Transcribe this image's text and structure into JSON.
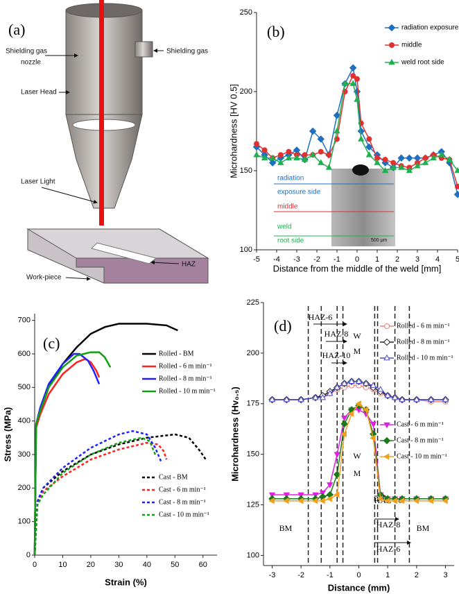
{
  "diagram": {
    "title": "(a)",
    "labels": [
      "Shielding gas",
      "nozzle",
      "Shielding gas",
      "Laser Head",
      "Laser Light",
      "HAZ",
      "Work-piece"
    ]
  },
  "chart_data": [
    {
      "type": "line",
      "title": "(b)",
      "x_label": "Distance from the middle of the weld [mm]",
      "y_label": "Microhardness [HV 0.5]",
      "x": [
        -5,
        -4.6,
        -4.2,
        -3.8,
        -3.4,
        -3,
        -2.6,
        -2.2,
        -1.8,
        -1.4,
        -1,
        -0.6,
        -0.2,
        0,
        0.2,
        0.6,
        1,
        1.4,
        1.8,
        2.2,
        2.6,
        3,
        3.4,
        3.8,
        4.2,
        4.6,
        5
      ],
      "xlim": [
        -5,
        5
      ],
      "xticks": [
        -5,
        -4,
        -3,
        -2,
        -1,
        0,
        1,
        2,
        3,
        4,
        5
      ],
      "ylim": [
        100,
        250
      ],
      "yticks": [
        100,
        150,
        200,
        250
      ],
      "series": [
        {
          "name": "radiation exposure side",
          "color": "#1f6fc0",
          "marker": "diamond",
          "values": [
            165,
            160,
            155,
            158,
            160,
            163,
            157,
            175,
            170,
            160,
            185,
            205,
            215,
            200,
            175,
            165,
            160,
            155,
            152,
            158,
            158,
            158,
            158,
            160,
            162,
            155,
            135
          ]
        },
        {
          "name": "middle",
          "color": "#e03030",
          "marker": "circle",
          "values": [
            167,
            163,
            158,
            160,
            162,
            160,
            160,
            160,
            162,
            160,
            170,
            200,
            210,
            208,
            180,
            170,
            158,
            157,
            155,
            153,
            152,
            155,
            158,
            160,
            158,
            157,
            140
          ]
        },
        {
          "name": "weld root side",
          "color": "#20b050",
          "marker": "triangle",
          "values": [
            160,
            158,
            158,
            155,
            158,
            158,
            157,
            160,
            155,
            152,
            175,
            205,
            205,
            195,
            170,
            160,
            155,
            150,
            152,
            152,
            150,
            153,
            155,
            158,
            160,
            157,
            150
          ]
        }
      ],
      "inset_labels": [
        "radiation",
        "exposure side",
        "middle",
        "weld",
        "root side",
        "500 μm"
      ]
    },
    {
      "type": "line",
      "title": "(c)",
      "x_label": "Strain (%)",
      "y_label": "Stress (MPa)",
      "xlim": [
        0,
        65
      ],
      "xticks": [
        0,
        10,
        20,
        30,
        40,
        50,
        60
      ],
      "ylim": [
        0,
        720
      ],
      "yticks": [
        0,
        100,
        200,
        300,
        400,
        500,
        600,
        700
      ],
      "series": [
        {
          "name": "Rolled - BM",
          "color": "#000000",
          "x": [
            0,
            0.5,
            2,
            5,
            10,
            15,
            20,
            25,
            30,
            40,
            47,
            51
          ],
          "values": [
            0,
            380,
            430,
            500,
            570,
            620,
            660,
            680,
            690,
            690,
            685,
            670
          ]
        },
        {
          "name": "Rolled - 6 m min⁻¹",
          "color": "#ff2020",
          "x": [
            0,
            0.5,
            2,
            5,
            10,
            15,
            18,
            20,
            22,
            23
          ],
          "values": [
            0,
            380,
            420,
            480,
            540,
            575,
            585,
            575,
            550,
            530
          ]
        },
        {
          "name": "Rolled - 8 m min⁻¹",
          "color": "#2020ff",
          "x": [
            0,
            0.5,
            2,
            5,
            10,
            14,
            16,
            19,
            21,
            23
          ],
          "values": [
            0,
            390,
            440,
            510,
            570,
            600,
            600,
            580,
            550,
            510
          ]
        },
        {
          "name": "Rolled - 10 m min⁻¹",
          "color": "#10a010",
          "x": [
            0,
            0.5,
            2,
            5,
            10,
            15,
            20,
            23,
            25,
            27
          ],
          "values": [
            0,
            390,
            430,
            500,
            560,
            595,
            605,
            605,
            590,
            560
          ]
        },
        {
          "name": "Cast - BM",
          "color": "#000000",
          "dash": true,
          "x": [
            0,
            1,
            3,
            10,
            20,
            30,
            40,
            50,
            55,
            59,
            61
          ],
          "values": [
            0,
            160,
            200,
            250,
            300,
            330,
            350,
            360,
            350,
            310,
            285
          ]
        },
        {
          "name": "Cast - 6 m min⁻¹",
          "color": "#ff2020",
          "dash": true,
          "x": [
            0,
            1,
            3,
            10,
            20,
            30,
            40,
            44,
            46,
            47
          ],
          "values": [
            0,
            155,
            190,
            235,
            285,
            315,
            335,
            330,
            310,
            285
          ]
        },
        {
          "name": "Cast - 8 m min⁻¹",
          "color": "#2020ff",
          "dash": true,
          "x": [
            0,
            1,
            3,
            10,
            20,
            30,
            35,
            40,
            43,
            45
          ],
          "values": [
            0,
            160,
            200,
            260,
            320,
            360,
            370,
            360,
            320,
            280
          ]
        },
        {
          "name": "Cast - 10 m min⁻¹",
          "color": "#10a010",
          "dash": true,
          "x": [
            0,
            1,
            3,
            10,
            20,
            30,
            38,
            41,
            43
          ],
          "values": [
            0,
            150,
            180,
            245,
            300,
            335,
            350,
            340,
            300
          ]
        }
      ]
    },
    {
      "type": "line",
      "title": "(d)",
      "x_label": "Distance (mm)",
      "y_label": "Microhardness (Hv₀.₅)",
      "x": [
        -3,
        -2.5,
        -2,
        -1.5,
        -1.25,
        -1,
        -0.75,
        -0.5,
        -0.25,
        0,
        0.25,
        0.5,
        0.75,
        1,
        1.25,
        1.5,
        2,
        2.5,
        3
      ],
      "xlim": [
        -3.3,
        3.3
      ],
      "xticks": [
        -3,
        -2,
        -1,
        0,
        1,
        2,
        3
      ],
      "ylim": [
        95,
        225
      ],
      "yticks": [
        100,
        125,
        150,
        175,
        200,
        225
      ],
      "boundaries": [
        -1.75,
        -1.3,
        -0.75,
        -0.55,
        0.55,
        0.65,
        1.25,
        1.75
      ],
      "series": [
        {
          "name": "Rolled - 6 m min⁻¹",
          "color": "#e8837a",
          "marker": "circle",
          "filled": false,
          "values": [
            177,
            177,
            177,
            178,
            179,
            180,
            182,
            183,
            184,
            184,
            183,
            182,
            180,
            179,
            178,
            177,
            177,
            176,
            176
          ]
        },
        {
          "name": "Rolled - 8 m min⁻¹",
          "color": "#222222",
          "marker": "diamond",
          "filled": false,
          "values": [
            177,
            177,
            177,
            178,
            179,
            181,
            183,
            185,
            186,
            186,
            185,
            183,
            181,
            179,
            178,
            177,
            177,
            177,
            177
          ]
        },
        {
          "name": "Rolled - 10 m min⁻¹",
          "color": "#4a4ad0",
          "marker": "triangle",
          "filled": false,
          "values": [
            177,
            177,
            177,
            178,
            178,
            180,
            183,
            185,
            186,
            186,
            185,
            184,
            182,
            179,
            178,
            177,
            177,
            177,
            177
          ]
        },
        {
          "name": "Cast - 6 m min⁻¹",
          "color": "#e020e0",
          "marker": "triangle-down",
          "filled": true,
          "values": [
            130,
            130,
            130,
            130,
            131,
            135,
            150,
            168,
            172,
            172,
            170,
            165,
            130,
            128,
            128,
            128,
            128,
            128,
            128
          ]
        },
        {
          "name": "Cast - 8 m min⁻¹",
          "color": "#1a7a1a",
          "marker": "diamond",
          "filled": true,
          "values": [
            128,
            128,
            128,
            128,
            129,
            130,
            140,
            165,
            172,
            174,
            172,
            160,
            130,
            128,
            128,
            128,
            128,
            128,
            128
          ]
        },
        {
          "name": "Cast - 10 m min⁻¹",
          "color": "#f0a020",
          "marker": "triangle-left",
          "filled": true,
          "values": [
            127,
            127,
            127,
            127,
            127,
            128,
            130,
            160,
            170,
            175,
            172,
            158,
            128,
            127,
            127,
            127,
            127,
            127,
            127
          ]
        }
      ],
      "annotations": [
        "HAZ-6",
        "HAZ-8",
        "HAZ-10",
        "W",
        "M",
        "W",
        "M",
        "BM",
        "BM",
        "HAZ-10",
        "HAZ-8",
        "HAZ-6"
      ]
    }
  ]
}
